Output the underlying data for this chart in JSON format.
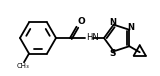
{
  "bg_color": "#ffffff",
  "line_color": "#000000",
  "line_width": 1.3,
  "figsize": [
    1.6,
    0.76
  ],
  "dpi": 100,
  "xlim": [
    0,
    160
  ],
  "ylim": [
    0,
    76
  ]
}
